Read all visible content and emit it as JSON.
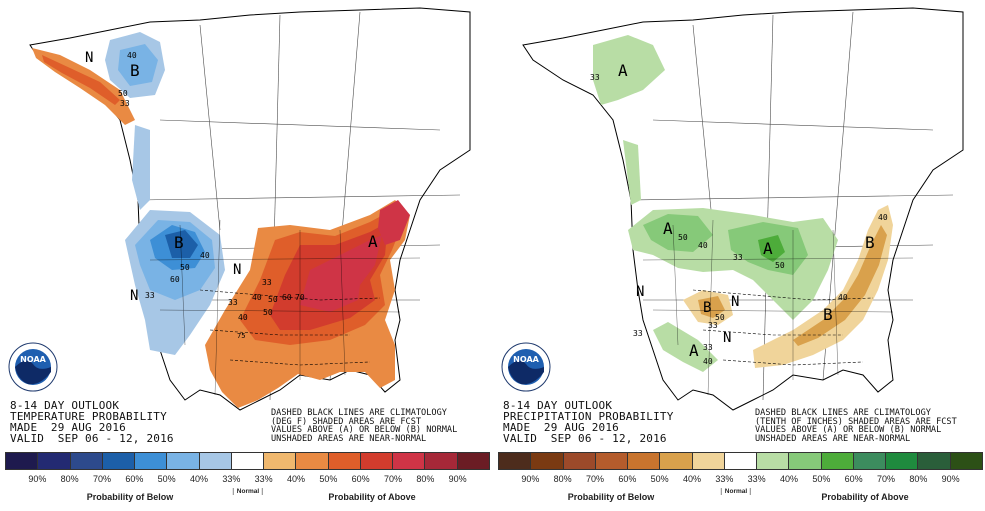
{
  "panels": [
    {
      "outlook_title": "8-14 DAY OUTLOOK",
      "parameter": "TEMPERATURE PROBABILITY",
      "made": "MADE  29 AUG 2016",
      "valid": "VALID  SEP 06 - 12, 2016",
      "note": [
        "DASHED BLACK LINES ARE CLIMATOLOGY",
        "(DEG F) SHADED AREAS ARE FCST",
        "VALUES ABOVE (A) OR BELOW (B) NORMAL",
        "UNSHADED AREAS ARE NEAR-NORMAL"
      ],
      "logo_text": "NOAA",
      "legend_colors": [
        "#1e1a4e",
        "#232a72",
        "#2d4a8c",
        "#1c5fa8",
        "#3d8fd6",
        "#79b3e5",
        "#a7c7e6",
        "#ffffff",
        "#f0b86e",
        "#e98a43",
        "#df5e2a",
        "#d23c2d",
        "#cf3446",
        "#a62838",
        "#6b1c24"
      ],
      "ticks": [
        "90%",
        "80%",
        "70%",
        "60%",
        "50%",
        "40%",
        "33%",
        "33%",
        "40%",
        "50%",
        "60%",
        "70%",
        "80%",
        "90%"
      ],
      "caption_below": "Probability of Below",
      "caption_normal": "Normal",
      "caption_above": "Probability of Above",
      "map_labels": [
        "N",
        "B",
        "40",
        "50",
        "33",
        "B",
        "40",
        "50",
        "60",
        "33",
        "N",
        "33",
        "N",
        "A",
        "33",
        "40",
        "50",
        "60",
        "70",
        "50",
        "40",
        "75"
      ]
    },
    {
      "outlook_title": "8-14 DAY OUTLOOK",
      "parameter": "PRECIPITATION PROBABILITY",
      "made": "MADE  29 AUG 2016",
      "valid": "VALID  SEP 06 - 12, 2016",
      "note": [
        "DASHED BLACK LINES ARE CLIMATOLOGY",
        "(TENTH OF INCHES) SHADED AREAS ARE FCST",
        "VALUES ABOVE (A) OR BELOW (B) NORMAL",
        "UNSHADED AREAS ARE NEAR-NORMAL"
      ],
      "logo_text": "NOAA",
      "legend_colors": [
        "#4d2c1c",
        "#7a3a12",
        "#9c4a2a",
        "#b45c2c",
        "#c8742e",
        "#d9a14c",
        "#f0d49a",
        "#ffffff",
        "#b8dda5",
        "#86c979",
        "#4dac3a",
        "#3c8c5e",
        "#1f8b3e",
        "#2a5e3a",
        "#2c5016"
      ],
      "ticks": [
        "90%",
        "80%",
        "70%",
        "60%",
        "50%",
        "40%",
        "33%",
        "33%",
        "40%",
        "50%",
        "60%",
        "70%",
        "80%",
        "90%"
      ],
      "caption_below": "Probability of Below",
      "caption_normal": "Normal",
      "caption_above": "Probability of Above",
      "map_labels": [
        "A",
        "33",
        "N",
        "A",
        "50",
        "40",
        "33",
        "A",
        "50",
        "B",
        "50",
        "33",
        "N",
        "A",
        "33",
        "40",
        "B",
        "40",
        "B",
        "40",
        "N",
        "33"
      ]
    }
  ]
}
